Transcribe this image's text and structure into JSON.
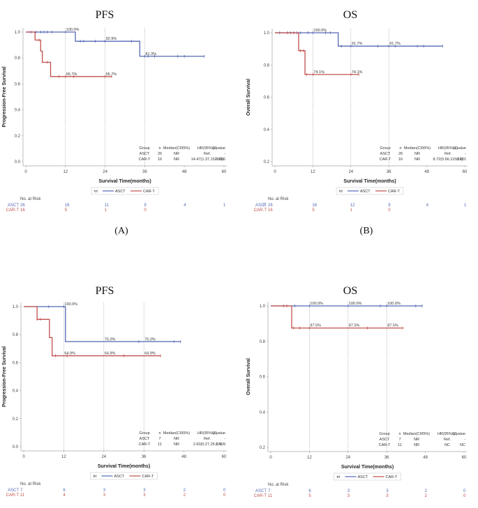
{
  "colors": {
    "ASCT": "#5468b4",
    "CAR-T": "#c0504d"
  },
  "chart_data": [
    {
      "panel_label": "(A)",
      "type": "line",
      "title": "PFS",
      "xlabel": "Survival Time(months)",
      "ylabel": "Progression-Free Survival",
      "xlim": [
        0,
        60
      ],
      "ylim": [
        0,
        1.0
      ],
      "xticks": [
        "0",
        "12",
        "24",
        "36",
        "48",
        "60"
      ],
      "yticks": [
        "0.0",
        "0.2",
        "0.4",
        "0.6",
        "0.8",
        "1.0"
      ],
      "ref_lines_x": [
        12,
        24,
        36
      ],
      "legend": {
        "title": "trt",
        "entries": [
          "ASCT",
          "CAR-T"
        ],
        "placement": "bottom"
      },
      "series": [
        {
          "name": "ASCT",
          "steps": [
            [
              0,
              1.0
            ],
            [
              15,
              1.0
            ],
            [
              15,
              0.929
            ],
            [
              34.5,
              0.929
            ],
            [
              34.5,
              0.813
            ],
            [
              54,
              0.813
            ]
          ],
          "censors": [
            [
              1.5,
              1.0
            ],
            [
              3,
              1.0
            ],
            [
              4.5,
              1.0
            ],
            [
              5.5,
              1.0
            ],
            [
              6.5,
              1.0
            ],
            [
              8,
              1.0
            ],
            [
              12,
              1.0
            ],
            [
              16.5,
              0.929
            ],
            [
              17.5,
              0.929
            ],
            [
              21,
              0.929
            ],
            [
              24,
              0.929
            ],
            [
              32,
              0.929
            ],
            [
              36,
              0.813
            ],
            [
              37,
              0.813
            ],
            [
              39,
              0.813
            ],
            [
              46,
              0.813
            ],
            [
              48,
              0.813
            ],
            [
              54,
              0.813
            ]
          ]
        },
        {
          "name": "CAR-T",
          "steps": [
            [
              0,
              1.0
            ],
            [
              2.8,
              1.0
            ],
            [
              2.8,
              0.938
            ],
            [
              4.5,
              0.938
            ],
            [
              4.5,
              0.853
            ],
            [
              5,
              0.853
            ],
            [
              5,
              0.767
            ],
            [
              7.5,
              0.767
            ],
            [
              7.5,
              0.657
            ],
            [
              26,
              0.657
            ]
          ],
          "censors": [
            [
              4,
              0.938
            ],
            [
              6.5,
              0.767
            ],
            [
              10,
              0.657
            ],
            [
              12,
              0.657
            ],
            [
              14.5,
              0.657
            ],
            [
              24,
              0.657
            ],
            [
              26,
              0.657
            ]
          ]
        }
      ],
      "annotations": [
        {
          "x": 12,
          "y": 1.0,
          "text": "100.0%"
        },
        {
          "x": 24,
          "y": 0.929,
          "text": "92.9%"
        },
        {
          "x": 36,
          "y": 0.813,
          "text": "81.3%"
        },
        {
          "x": 12,
          "y": 0.657,
          "text": "65.7%"
        },
        {
          "x": 24,
          "y": 0.657,
          "text": "65.7%"
        }
      ],
      "stats_table": {
        "headers": [
          "Group",
          "n",
          "Median(CI95%)",
          "HR(95%CI)",
          "p.value"
        ],
        "rows": [
          [
            "ASCT",
            "26",
            "NR",
            "Ref.",
            "-"
          ],
          [
            "CAR-T",
            "16",
            "NR",
            "14.47(1.37,152.69)",
            "0.026"
          ]
        ]
      },
      "risk_table": {
        "label": "No. at Risk",
        "rows": [
          {
            "group": "ASCT",
            "values": [
              "26",
              "16",
              "11",
              "9",
              "4",
              "1",
              "0"
            ]
          },
          {
            "group": "CAR-T",
            "values": [
              "16",
              "5",
              "1",
              "0"
            ]
          }
        ]
      }
    },
    {
      "panel_label": "(B)",
      "type": "line",
      "title": "OS",
      "xlabel": "Survival Time(months)",
      "ylabel": "Overall Survival",
      "xlim": [
        0,
        60
      ],
      "ylim": [
        0.2,
        1.0
      ],
      "xticks": [
        "0",
        "12",
        "24",
        "36",
        "48",
        "60"
      ],
      "yticks": [
        "0.2",
        "0.4",
        "0.6",
        "0.8",
        "1.0"
      ],
      "ref_lines_x": [
        12,
        24,
        36
      ],
      "legend": {
        "title": "trt",
        "entries": [
          "ASCT",
          "CAR-T"
        ],
        "placement": "bottom"
      },
      "series": [
        {
          "name": "ASCT",
          "steps": [
            [
              0,
              1.0
            ],
            [
              20,
              1.0
            ],
            [
              20,
              0.917
            ],
            [
              53,
              0.917
            ]
          ],
          "censors": [
            [
              1.5,
              1.0
            ],
            [
              4,
              1.0
            ],
            [
              5,
              1.0
            ],
            [
              6,
              1.0
            ],
            [
              7,
              1.0
            ],
            [
              8,
              1.0
            ],
            [
              10.5,
              1.0
            ],
            [
              12,
              1.0
            ],
            [
              16,
              1.0
            ],
            [
              17.5,
              1.0
            ],
            [
              21,
              0.917
            ],
            [
              24,
              0.917
            ],
            [
              32.5,
              0.917
            ],
            [
              36,
              0.917
            ],
            [
              38,
              0.917
            ],
            [
              45,
              0.917
            ],
            [
              47,
              0.917
            ],
            [
              53,
              0.917
            ]
          ]
        },
        {
          "name": "CAR-T",
          "steps": [
            [
              0,
              1.0
            ],
            [
              7.5,
              1.0
            ],
            [
              7.5,
              0.889
            ],
            [
              9.5,
              0.889
            ],
            [
              9.5,
              0.741
            ],
            [
              26.5,
              0.741
            ]
          ],
          "censors": [
            [
              4,
              1.0
            ],
            [
              6,
              1.0
            ],
            [
              8,
              0.889
            ],
            [
              9,
              0.889
            ],
            [
              10,
              0.741
            ],
            [
              12,
              0.741
            ],
            [
              24,
              0.741
            ],
            [
              26.5,
              0.741
            ]
          ]
        }
      ],
      "annotations": [
        {
          "x": 12,
          "y": 1.0,
          "text": "100.0%"
        },
        {
          "x": 24,
          "y": 0.917,
          "text": "91.7%"
        },
        {
          "x": 36,
          "y": 0.917,
          "text": "91.7%"
        },
        {
          "x": 12,
          "y": 0.741,
          "text": "74.1%"
        },
        {
          "x": 24,
          "y": 0.741,
          "text": "74.1%"
        }
      ],
      "stats_table": {
        "headers": [
          "Group",
          "n",
          "Median(CI95%)",
          "HR(95%CI)",
          "p.value"
        ],
        "rows": [
          [
            "ASCT",
            "26",
            "NR",
            "Ref.",
            "-"
          ],
          [
            "CAR-T",
            "16",
            "NR",
            "8.72(0.66,115.59)",
            "0.101"
          ]
        ]
      },
      "risk_table": {
        "label": "No. at Risk",
        "rows": [
          {
            "group": "ASCT",
            "values": [
              "26",
              "16",
              "12",
              "9",
              "4",
              "1",
              "0"
            ]
          },
          {
            "group": "CAR-T",
            "values": [
              "16",
              "5",
              "1",
              "0"
            ]
          }
        ]
      }
    },
    {
      "panel_label": "(C)",
      "type": "line",
      "title": "PFS",
      "xlabel": "Survival Time(months)",
      "ylabel": "Progression-Free Survival",
      "xlim": [
        0,
        60
      ],
      "ylim": [
        0,
        1.0
      ],
      "xticks": [
        "0",
        "12",
        "24",
        "36",
        "48",
        "60"
      ],
      "yticks": [
        "0.0",
        "0.2",
        "0.4",
        "0.6",
        "0.8",
        "1.0"
      ],
      "ref_lines_x": [
        12,
        24,
        36
      ],
      "legend": {
        "title": "trt",
        "entries": [
          "ASCT",
          "CAR-T"
        ],
        "placement": "bottom"
      },
      "series": [
        {
          "name": "ASCT",
          "steps": [
            [
              0,
              1.0
            ],
            [
              12.5,
              1.0
            ],
            [
              12.5,
              0.75
            ],
            [
              47,
              0.75
            ]
          ],
          "censors": [
            [
              7.5,
              1.0
            ],
            [
              12,
              1.0
            ],
            [
              34.5,
              0.75
            ],
            [
              45,
              0.75
            ],
            [
              47,
              0.75
            ]
          ]
        },
        {
          "name": "CAR-T",
          "steps": [
            [
              0,
              1.0
            ],
            [
              4,
              1.0
            ],
            [
              4,
              0.909
            ],
            [
              7.7,
              0.909
            ],
            [
              7.7,
              0.779
            ],
            [
              8.5,
              0.779
            ],
            [
              8.5,
              0.649
            ],
            [
              41,
              0.649
            ]
          ],
          "censors": [
            [
              4,
              0.909
            ],
            [
              5,
              0.909
            ],
            [
              9.5,
              0.649
            ],
            [
              13,
              0.649
            ],
            [
              30,
              0.649
            ],
            [
              41,
              0.649
            ]
          ]
        }
      ],
      "annotations": [
        {
          "x": 12,
          "y": 1.0,
          "text": "100.0%"
        },
        {
          "x": 24,
          "y": 0.75,
          "text": "75.0%"
        },
        {
          "x": 36,
          "y": 0.75,
          "text": "75.0%"
        },
        {
          "x": 12,
          "y": 0.649,
          "text": "64.9%"
        },
        {
          "x": 24,
          "y": 0.649,
          "text": "64.9%"
        },
        {
          "x": 36,
          "y": 0.649,
          "text": "64.9%"
        }
      ],
      "stats_table": {
        "headers": [
          "Group",
          "n",
          "Median(CI95%)",
          "HR(95%CI)",
          "p.value"
        ],
        "rows": [
          [
            "ASCT",
            "7",
            "NR",
            "Ref.",
            "-"
          ],
          [
            "CAR-T",
            "11",
            "NR",
            "2.60(0.27,25.17)",
            "0.409"
          ]
        ]
      },
      "risk_table": {
        "label": "No. at Risk",
        "rows": [
          {
            "group": "ASCT",
            "values": [
              "7",
              "6",
              "3",
              "3",
              "2",
              "0"
            ]
          },
          {
            "group": "CAR-T",
            "values": [
              "11",
              "4",
              "3",
              "3",
              "2",
              "0"
            ]
          }
        ]
      }
    },
    {
      "panel_label": "(D)",
      "type": "line",
      "title": "OS",
      "xlabel": "Survival Time(months)",
      "ylabel": "Overall Survival",
      "xlim": [
        0,
        60
      ],
      "ylim": [
        0.2,
        1.0
      ],
      "xticks": [
        "0",
        "12",
        "24",
        "36",
        "48",
        "60"
      ],
      "yticks": [
        "0.2",
        "0.4",
        "0.6",
        "0.8",
        "1.0"
      ],
      "ref_lines_x": [
        12,
        24,
        36
      ],
      "legend": {
        "title": "trt",
        "entries": [
          "ASCT",
          "CAR-T"
        ],
        "placement": "bottom"
      },
      "series": [
        {
          "name": "ASCT",
          "steps": [
            [
              0,
              1.0
            ],
            [
              47,
              1.0
            ]
          ],
          "censors": [
            [
              7.5,
              1.0
            ],
            [
              12,
              1.0
            ],
            [
              24,
              1.0
            ],
            [
              34,
              1.0
            ],
            [
              36,
              1.0
            ],
            [
              45,
              1.0
            ],
            [
              47,
              1.0
            ]
          ]
        },
        {
          "name": "CAR-T",
          "steps": [
            [
              0,
              1.0
            ],
            [
              6.5,
              1.0
            ],
            [
              6.5,
              0.875
            ],
            [
              41,
              0.875
            ]
          ],
          "censors": [
            [
              4,
              1.0
            ],
            [
              5,
              1.0
            ],
            [
              7,
              0.875
            ],
            [
              9,
              0.875
            ],
            [
              12,
              0.875
            ],
            [
              30,
              0.875
            ],
            [
              41,
              0.875
            ]
          ]
        }
      ],
      "annotations": [
        {
          "x": 12,
          "y": 1.0,
          "text": "100.0%"
        },
        {
          "x": 24,
          "y": 1.0,
          "text": "100.0%"
        },
        {
          "x": 36,
          "y": 1.0,
          "text": "100.0%"
        },
        {
          "x": 12,
          "y": 0.875,
          "text": "87.5%"
        },
        {
          "x": 24,
          "y": 0.875,
          "text": "87.5%"
        },
        {
          "x": 36,
          "y": 0.875,
          "text": "87.5%"
        }
      ],
      "stats_table": {
        "headers": [
          "Group",
          "n",
          "Median(CI95%)",
          "HR(95%CI)",
          "p.value"
        ],
        "rows": [
          [
            "ASCT",
            "7",
            "NR",
            "Ref.",
            "-"
          ],
          [
            "CAR-T",
            "11",
            "NR",
            "NC",
            "NC"
          ]
        ]
      },
      "risk_table": {
        "label": "No. at Risk",
        "rows": [
          {
            "group": "ASCT",
            "values": [
              "7",
              "6",
              "3",
              "3",
              "2",
              "0"
            ]
          },
          {
            "group": "CAR-T",
            "values": [
              "11",
              "5",
              "3",
              "3",
              "2",
              "0"
            ]
          }
        ]
      }
    }
  ]
}
